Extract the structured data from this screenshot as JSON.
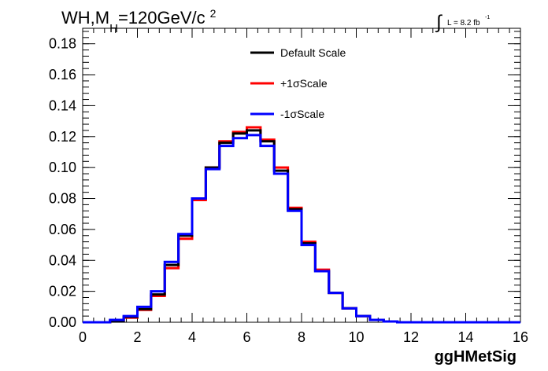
{
  "chart_data": {
    "type": "line",
    "title": {
      "main": "WH,M",
      "subscript": "H",
      "rest": "=120GeV/c",
      "superscript": "2"
    },
    "lumi": {
      "integral": "∫",
      "text": "L = 8.2 fb",
      "superscript": "-1"
    },
    "xlabel": "ggHMetSig",
    "ylabel": "",
    "xlim": [
      0,
      16
    ],
    "ylim": [
      0,
      0.19
    ],
    "xticks": [
      0,
      2,
      4,
      6,
      8,
      10,
      12,
      14,
      16
    ],
    "xtick_labels": [
      "0",
      "2",
      "4",
      "6",
      "8",
      "10",
      "12",
      "14",
      "16"
    ],
    "yticks": [
      0,
      0.02,
      0.04,
      0.06,
      0.08,
      0.1,
      0.12,
      0.14,
      0.16,
      0.18
    ],
    "ytick_labels": [
      "0.00",
      "0.02",
      "0.04",
      "0.06",
      "0.08",
      "0.10",
      "0.12",
      "0.14",
      "0.16",
      "0.18"
    ],
    "bin_edges": [
      0,
      0.5,
      1,
      1.5,
      2,
      2.5,
      3,
      3.5,
      4,
      4.5,
      5,
      5.5,
      6,
      6.5,
      7,
      7.5,
      8,
      8.5,
      9,
      9.5,
      10,
      10.5,
      11,
      11.5,
      12,
      12.5,
      13,
      13.5,
      14,
      14.5,
      15,
      15.5,
      16
    ],
    "legend_position": "top-center",
    "series": [
      {
        "name": "+1σScale",
        "color": "#ff0000",
        "values": [
          0,
          0,
          0.001,
          0.003,
          0.008,
          0.017,
          0.035,
          0.054,
          0.079,
          0.1,
          0.117,
          0.123,
          0.126,
          0.118,
          0.1,
          0.074,
          0.052,
          0.034,
          0.019,
          0.009,
          0.004,
          0.0015,
          0.0005,
          0,
          0,
          0,
          0,
          0,
          0,
          0,
          0,
          0
        ]
      },
      {
        "name": "Default Scale",
        "color": "#000000",
        "values": [
          0,
          0,
          0.001,
          0.0035,
          0.0085,
          0.018,
          0.037,
          0.056,
          0.08,
          0.1,
          0.116,
          0.122,
          0.124,
          0.117,
          0.098,
          0.073,
          0.051,
          0.033,
          0.019,
          0.009,
          0.004,
          0.0015,
          0.0005,
          0,
          0,
          0,
          0,
          0,
          0,
          0,
          0,
          0
        ]
      },
      {
        "name": "-1σScale",
        "color": "#0000ff",
        "values": [
          0,
          0,
          0.0015,
          0.004,
          0.01,
          0.02,
          0.039,
          0.057,
          0.08,
          0.099,
          0.114,
          0.119,
          0.121,
          0.114,
          0.096,
          0.072,
          0.05,
          0.033,
          0.019,
          0.009,
          0.004,
          0.0015,
          0.0005,
          0,
          0,
          0,
          0,
          0,
          0,
          0,
          0,
          0
        ]
      }
    ],
    "legend": [
      {
        "label": "Default Scale",
        "color": "#000000"
      },
      {
        "label": "+1σScale",
        "color": "#ff0000"
      },
      {
        "label": "-1σScale",
        "color": "#0000ff"
      }
    ]
  }
}
